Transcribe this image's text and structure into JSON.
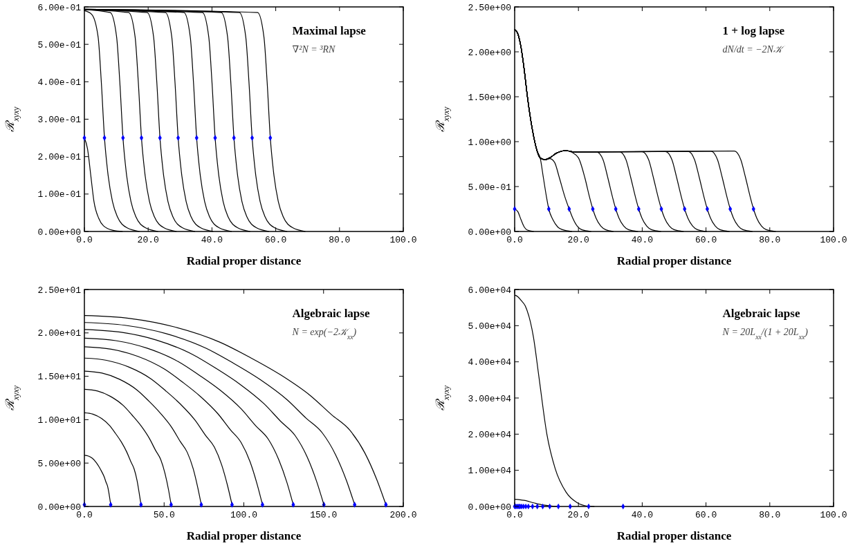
{
  "chart_data": [
    {
      "type": "line",
      "title": "Maximal lapse",
      "subtitle": "∇²N = ³RN",
      "xlabel": "Radial proper distance",
      "ylabel": "ℛ$_{xyxy}$",
      "xlim": [
        0,
        100
      ],
      "ylim": [
        0,
        0.6
      ],
      "xticks": [
        {
          "value": 0,
          "label": "0.0"
        },
        {
          "value": 20,
          "label": "20.0"
        },
        {
          "value": 40,
          "label": "40.0"
        },
        {
          "value": 60,
          "label": "60.0"
        },
        {
          "value": 80,
          "label": "80.0"
        },
        {
          "value": 100,
          "label": "100.0"
        }
      ],
      "yticks": [
        {
          "value": 0,
          "label": "0.00e+00"
        },
        {
          "value": 0.1,
          "label": "1.00e-01"
        },
        {
          "value": 0.2,
          "label": "2.00e-01"
        },
        {
          "value": 0.3,
          "label": "3.00e-01"
        },
        {
          "value": 0.4,
          "label": "4.00e-01"
        },
        {
          "value": 0.5,
          "label": "5.00e-01"
        },
        {
          "value": 0.6,
          "label": "6.00e-01"
        }
      ],
      "series": [
        {
          "type": "line",
          "color": "#000000",
          "x": [
            0,
            1,
            2,
            3,
            4.5,
            6,
            9,
            12
          ],
          "values": [
            0.25,
            0.22,
            0.15,
            0.08,
            0.035,
            0.015,
            0.003,
            0
          ]
        },
        {
          "type": "line",
          "color": "#000000",
          "x": [
            0,
            2.3,
            4.3,
            5.3,
            6.3,
            7.3,
            8.8,
            10.3,
            13.3,
            17.3
          ],
          "values": [
            0.59,
            0.58,
            0.52,
            0.4,
            0.25,
            0.16,
            0.08,
            0.04,
            0.01,
            0
          ]
        },
        {
          "type": "line",
          "color": "#000000",
          "x": [
            0,
            8.1,
            10.1,
            11.1,
            12.1,
            13.1,
            14.6,
            16.1,
            19.1,
            23.1
          ],
          "values": [
            0.593,
            0.585,
            0.52,
            0.4,
            0.25,
            0.16,
            0.08,
            0.04,
            0.01,
            0
          ]
        },
        {
          "type": "line",
          "color": "#000000",
          "x": [
            0,
            13.9,
            15.9,
            16.9,
            17.9,
            18.9,
            20.4,
            21.9,
            24.9,
            28.9
          ],
          "values": [
            0.593,
            0.585,
            0.52,
            0.4,
            0.25,
            0.16,
            0.08,
            0.04,
            0.01,
            0
          ]
        },
        {
          "type": "line",
          "color": "#000000",
          "x": [
            0,
            19.7,
            21.7,
            22.7,
            23.7,
            24.7,
            26.2,
            27.7,
            30.7,
            34.7
          ],
          "values": [
            0.593,
            0.585,
            0.52,
            0.4,
            0.25,
            0.16,
            0.08,
            0.04,
            0.01,
            0
          ]
        },
        {
          "type": "line",
          "color": "#000000",
          "x": [
            0,
            25.4,
            27.4,
            28.4,
            29.4,
            30.4,
            31.9,
            33.4,
            36.4,
            40.4
          ],
          "values": [
            0.593,
            0.585,
            0.52,
            0.4,
            0.25,
            0.16,
            0.08,
            0.04,
            0.01,
            0
          ]
        },
        {
          "type": "line",
          "color": "#000000",
          "x": [
            0,
            31.2,
            33.2,
            34.2,
            35.2,
            36.2,
            37.7,
            39.2,
            42.2,
            46.2
          ],
          "values": [
            0.593,
            0.585,
            0.52,
            0.4,
            0.25,
            0.16,
            0.08,
            0.04,
            0.01,
            0
          ]
        },
        {
          "type": "line",
          "color": "#000000",
          "x": [
            0,
            37,
            39,
            40,
            41,
            42,
            43.5,
            45,
            48,
            52
          ],
          "values": [
            0.593,
            0.585,
            0.52,
            0.4,
            0.25,
            0.16,
            0.08,
            0.04,
            0.01,
            0
          ]
        },
        {
          "type": "line",
          "color": "#000000",
          "x": [
            0,
            42.9,
            44.9,
            45.9,
            46.9,
            47.9,
            49.4,
            50.9,
            53.9,
            57.9
          ],
          "values": [
            0.594,
            0.585,
            0.52,
            0.4,
            0.25,
            0.16,
            0.08,
            0.04,
            0.01,
            0
          ]
        },
        {
          "type": "line",
          "color": "#000000",
          "x": [
            0,
            48.6,
            50.6,
            51.6,
            52.6,
            53.6,
            55.1,
            56.6,
            59.6,
            63.6
          ],
          "values": [
            0.594,
            0.585,
            0.52,
            0.4,
            0.25,
            0.16,
            0.08,
            0.04,
            0.01,
            0
          ]
        },
        {
          "type": "line",
          "color": "#000000",
          "x": [
            0,
            54.3,
            56.3,
            57.3,
            58.3,
            59.3,
            60.8,
            62.3,
            65.3,
            69.3
          ],
          "values": [
            0.594,
            0.585,
            0.52,
            0.4,
            0.25,
            0.16,
            0.08,
            0.04,
            0.01,
            0
          ]
        },
        {
          "type": "scatter",
          "color": "#0000ff",
          "marker": "diamond",
          "x": [
            0,
            6.3,
            12.1,
            17.9,
            23.7,
            29.4,
            35.2,
            41,
            46.9,
            52.6,
            58.3
          ],
          "values": [
            0.25,
            0.25,
            0.25,
            0.25,
            0.25,
            0.25,
            0.25,
            0.25,
            0.25,
            0.25,
            0.25
          ]
        }
      ]
    },
    {
      "type": "line",
      "title": "1 + log lapse",
      "subtitle": "dN/dt = −2N𝒦",
      "xlabel": "Radial proper distance",
      "ylabel": "ℛ$_{xyxy}$",
      "xlim": [
        0,
        100
      ],
      "ylim": [
        0,
        2.5
      ],
      "xticks": [
        {
          "value": 0,
          "label": "0.0"
        },
        {
          "value": 20,
          "label": "20.0"
        },
        {
          "value": 40,
          "label": "40.0"
        },
        {
          "value": 60,
          "label": "60.0"
        },
        {
          "value": 80,
          "label": "80.0"
        },
        {
          "value": 100,
          "label": "100.0"
        }
      ],
      "yticks": [
        {
          "value": 0,
          "label": "0.00e+00"
        },
        {
          "value": 0.5,
          "label": "5.00e-01"
        },
        {
          "value": 1,
          "label": "1.00e+00"
        },
        {
          "value": 1.5,
          "label": "1.50e+00"
        },
        {
          "value": 2,
          "label": "2.00e+00"
        },
        {
          "value": 2.5,
          "label": "2.50e+00"
        }
      ],
      "series": [
        {
          "type": "line",
          "color": "#000000",
          "x": [
            0,
            1,
            2,
            3,
            4,
            6
          ],
          "values": [
            0.25,
            0.22,
            0.13,
            0.05,
            0.015,
            0
          ]
        },
        {
          "type": "line",
          "color": "#000000",
          "x": [
            0,
            1,
            2,
            3,
            4,
            5,
            6,
            7,
            8,
            9,
            10,
            10.7,
            12,
            13.5,
            15,
            18
          ],
          "values": [
            2.25,
            2.2,
            2.05,
            1.8,
            1.5,
            1.25,
            1.05,
            0.9,
            0.82,
            0.6,
            0.38,
            0.25,
            0.13,
            0.05,
            0.02,
            0
          ]
        },
        {
          "type": "line",
          "color": "#000000",
          "x": [
            0,
            1,
            2,
            3,
            4,
            5,
            6,
            7,
            8,
            9.5,
            11,
            12.5,
            14,
            15.8,
            17.1,
            18.2,
            19.6,
            21,
            24
          ],
          "values": [
            2.25,
            2.2,
            2.05,
            1.8,
            1.5,
            1.25,
            1.05,
            0.9,
            0.82,
            0.8,
            0.81,
            0.77,
            0.6,
            0.38,
            0.25,
            0.15,
            0.06,
            0.02,
            0
          ]
        },
        {
          "type": "line",
          "color": "#000000",
          "x": [
            0,
            1,
            2,
            3,
            4,
            5,
            6,
            7,
            8,
            9.5,
            11,
            13,
            16,
            18,
            20,
            22,
            23.5,
            24.5,
            25.5,
            27,
            28.5,
            31
          ],
          "values": [
            2.25,
            2.2,
            2.05,
            1.8,
            1.5,
            1.25,
            1.05,
            0.9,
            0.82,
            0.8,
            0.82,
            0.87,
            0.9,
            0.88,
            0.82,
            0.6,
            0.38,
            0.25,
            0.15,
            0.06,
            0.02,
            0
          ]
        },
        {
          "type": "line",
          "color": "#000000",
          "x": [
            0,
            1,
            2,
            3,
            4,
            5,
            6,
            7,
            8,
            9.5,
            11,
            13,
            16,
            19,
            25.7,
            27.7,
            29.2,
            30.7,
            31.7,
            32.7,
            34.2,
            35.7,
            38.7
          ],
          "values": [
            2.25,
            2.2,
            2.05,
            1.8,
            1.5,
            1.25,
            1.05,
            0.9,
            0.82,
            0.8,
            0.82,
            0.87,
            0.9,
            0.885,
            0.885,
            0.8,
            0.6,
            0.38,
            0.25,
            0.15,
            0.06,
            0.02,
            0
          ]
        },
        {
          "type": "line",
          "color": "#000000",
          "x": [
            0,
            1,
            2,
            3,
            4,
            5,
            6,
            7,
            8,
            9.5,
            11,
            13,
            16,
            19,
            32.9,
            34.9,
            36.4,
            37.9,
            38.9,
            39.9,
            41.4,
            42.9,
            45.9
          ],
          "values": [
            2.25,
            2.2,
            2.05,
            1.8,
            1.5,
            1.25,
            1.05,
            0.9,
            0.82,
            0.8,
            0.82,
            0.87,
            0.9,
            0.885,
            0.887,
            0.8,
            0.6,
            0.38,
            0.25,
            0.15,
            0.06,
            0.02,
            0
          ]
        },
        {
          "type": "line",
          "color": "#000000",
          "x": [
            0,
            1,
            2,
            3,
            4,
            5,
            6,
            7,
            8,
            9.5,
            11,
            13,
            16,
            19,
            40,
            42,
            43.5,
            45,
            46,
            47,
            48.5,
            50,
            53
          ],
          "values": [
            2.25,
            2.2,
            2.05,
            1.8,
            1.5,
            1.25,
            1.05,
            0.9,
            0.82,
            0.8,
            0.82,
            0.87,
            0.9,
            0.885,
            0.888,
            0.8,
            0.6,
            0.38,
            0.25,
            0.15,
            0.06,
            0.02,
            0
          ]
        },
        {
          "type": "line",
          "color": "#000000",
          "x": [
            0,
            1,
            2,
            3,
            4,
            5,
            6,
            7,
            8,
            9.5,
            11,
            13,
            16,
            19,
            47.3,
            49.3,
            50.8,
            52.3,
            53.3,
            54.3,
            55.8,
            57.3,
            60.3
          ],
          "values": [
            2.25,
            2.2,
            2.05,
            1.8,
            1.5,
            1.25,
            1.05,
            0.9,
            0.82,
            0.8,
            0.82,
            0.87,
            0.9,
            0.885,
            0.89,
            0.8,
            0.6,
            0.38,
            0.25,
            0.15,
            0.06,
            0.02,
            0
          ]
        },
        {
          "type": "line",
          "color": "#000000",
          "x": [
            0,
            1,
            2,
            3,
            4,
            5,
            6,
            7,
            8,
            9.5,
            11,
            13,
            16,
            19,
            54.4,
            56.4,
            57.9,
            59.4,
            60.4,
            61.4,
            62.9,
            64.4,
            67.4
          ],
          "values": [
            2.25,
            2.2,
            2.05,
            1.8,
            1.5,
            1.25,
            1.05,
            0.9,
            0.82,
            0.8,
            0.82,
            0.87,
            0.9,
            0.885,
            0.892,
            0.8,
            0.6,
            0.38,
            0.25,
            0.15,
            0.06,
            0.02,
            0
          ]
        },
        {
          "type": "line",
          "color": "#000000",
          "x": [
            0,
            1,
            2,
            3,
            4,
            5,
            6,
            7,
            8,
            9.5,
            11,
            13,
            16,
            19,
            61.6,
            63.6,
            65.1,
            66.6,
            67.6,
            68.6,
            70.1,
            71.6,
            74.6
          ],
          "values": [
            2.25,
            2.2,
            2.05,
            1.8,
            1.5,
            1.25,
            1.05,
            0.9,
            0.82,
            0.8,
            0.82,
            0.87,
            0.9,
            0.885,
            0.894,
            0.8,
            0.6,
            0.38,
            0.25,
            0.15,
            0.06,
            0.02,
            0
          ]
        },
        {
          "type": "line",
          "color": "#000000",
          "x": [
            0,
            1,
            2,
            3,
            4,
            5,
            6,
            7,
            8,
            9.5,
            11,
            13,
            16,
            19,
            68.9,
            70.9,
            72.4,
            73.9,
            74.9,
            75.9,
            77.4,
            78.9,
            81.9
          ],
          "values": [
            2.25,
            2.2,
            2.05,
            1.8,
            1.5,
            1.25,
            1.05,
            0.9,
            0.82,
            0.8,
            0.82,
            0.87,
            0.9,
            0.885,
            0.895,
            0.8,
            0.6,
            0.38,
            0.25,
            0.15,
            0.06,
            0.02,
            0
          ]
        },
        {
          "type": "scatter",
          "color": "#0000ff",
          "marker": "diamond",
          "x": [
            0,
            10.7,
            17.1,
            24.5,
            31.7,
            38.9,
            46,
            53.3,
            60.4,
            67.6,
            74.9
          ],
          "values": [
            0.25,
            0.25,
            0.25,
            0.25,
            0.25,
            0.25,
            0.25,
            0.25,
            0.25,
            0.25,
            0.25
          ]
        }
      ]
    },
    {
      "type": "line",
      "title": "Algebraic lapse",
      "subtitle": "N = exp(−2𝒦$_{xx}$)",
      "xlabel": "Radial proper distance",
      "ylabel": "ℛ$_{xyxy}$",
      "xlim": [
        0,
        200
      ],
      "ylim": [
        0,
        25
      ],
      "xticks": [
        {
          "value": 0,
          "label": "0.0"
        },
        {
          "value": 50,
          "label": "50.0"
        },
        {
          "value": 100,
          "label": "100.0"
        },
        {
          "value": 150,
          "label": "150.0"
        },
        {
          "value": 200,
          "label": "200.0"
        }
      ],
      "yticks": [
        {
          "value": 0,
          "label": "0.00e+00"
        },
        {
          "value": 5,
          "label": "5.00e+00"
        },
        {
          "value": 10,
          "label": "1.00e+01"
        },
        {
          "value": 15,
          "label": "1.50e+01"
        },
        {
          "value": 20,
          "label": "2.00e+01"
        },
        {
          "value": 25,
          "label": "2.50e+01"
        }
      ],
      "series": [
        {
          "type": "line",
          "color": "#000000",
          "x": [
            0,
            2.5,
            5,
            7.4,
            9.1,
            10.7,
            12.4,
            13.5,
            14.5,
            15.3,
            16,
            16.5
          ],
          "values": [
            5.9,
            5.81,
            5.55,
            5.07,
            4.6,
            4.07,
            3.42,
            2.83,
            2.36,
            1.65,
            0.83,
            0.2
          ]
        },
        {
          "type": "line",
          "color": "#000000",
          "x": [
            0,
            5.3,
            10.7,
            16,
            19.5,
            23.1,
            26.6,
            29.1,
            31.2,
            33,
            34.4,
            35.5
          ],
          "values": [
            10.8,
            10.64,
            10.15,
            9.29,
            8.42,
            7.45,
            6.26,
            5.18,
            4.32,
            3.02,
            1.51,
            0.2
          ]
        },
        {
          "type": "line",
          "color": "#000000",
          "x": [
            0,
            8.2,
            16.3,
            24.5,
            29.9,
            35.4,
            40.8,
            44.6,
            47.9,
            50.6,
            52.8,
            54.4
          ],
          "values": [
            13.5,
            13.3,
            12.69,
            11.61,
            10.53,
            9.32,
            7.83,
            6.48,
            5.4,
            3.78,
            1.89,
            0.2
          ]
        },
        {
          "type": "line",
          "color": "#000000",
          "x": [
            0,
            11,
            22,
            33,
            40.3,
            47.6,
            55,
            60.1,
            64.5,
            68.2,
            71.1,
            73.3
          ],
          "values": [
            15.6,
            15.37,
            14.66,
            13.42,
            12.17,
            10.76,
            9.05,
            7.49,
            6.24,
            4.37,
            2.18,
            0.2
          ]
        },
        {
          "type": "line",
          "color": "#000000",
          "x": [
            0,
            13.9,
            27.8,
            41.7,
            50.9,
            60.2,
            69.5,
            75.9,
            81.5,
            86.1,
            89.8,
            92.6
          ],
          "values": [
            17.1,
            16.84,
            16.07,
            14.71,
            13.34,
            11.8,
            9.92,
            8.21,
            6.84,
            4.79,
            2.39,
            0.2
          ]
        },
        {
          "type": "line",
          "color": "#000000",
          "x": [
            0,
            16.8,
            33.5,
            50.3,
            61.4,
            72.6,
            83.8,
            91.6,
            98.3,
            103.9,
            108.3,
            111.7
          ],
          "values": [
            18.4,
            18.12,
            17.3,
            15.82,
            14.35,
            12.7,
            10.67,
            8.83,
            7.36,
            5.15,
            2.58,
            0.2
          ]
        },
        {
          "type": "line",
          "color": "#000000",
          "x": [
            0,
            19.7,
            39.3,
            59,
            72,
            85.2,
            98.3,
            107.4,
            115.3,
            121.8,
            127.1,
            131
          ],
          "values": [
            19.4,
            19.11,
            18.24,
            16.68,
            15.13,
            13.39,
            11.25,
            9.31,
            7.76,
            5.43,
            2.72,
            0.2
          ]
        },
        {
          "type": "line",
          "color": "#000000",
          "x": [
            0,
            22.5,
            45.1,
            67.6,
            82.6,
            97.6,
            112.7,
            123.2,
            132.2,
            139.7,
            145.7,
            150.2
          ],
          "values": [
            20.4,
            20.09,
            19.18,
            17.54,
            15.91,
            14.08,
            11.83,
            9.79,
            8.16,
            5.71,
            2.86,
            0.2
          ]
        },
        {
          "type": "line",
          "color": "#000000",
          "x": [
            0,
            25.4,
            50.9,
            76.3,
            93.2,
            110.2,
            127.1,
            139,
            149.2,
            157.6,
            164.4,
            169.5
          ],
          "values": [
            21.2,
            20.88,
            19.93,
            18.23,
            16.54,
            14.63,
            12.3,
            10.18,
            8.48,
            5.94,
            2.97,
            0.2
          ]
        },
        {
          "type": "line",
          "color": "#000000",
          "x": [
            0,
            28.4,
            56.7,
            85.1,
            104,
            122.9,
            141.8,
            155.1,
            166.4,
            175.9,
            183.4,
            189.1
          ],
          "values": [
            22,
            21.67,
            20.68,
            18.92,
            17.16,
            15.18,
            12.76,
            10.56,
            8.8,
            6.16,
            3.08,
            0.2
          ]
        },
        {
          "type": "scatter",
          "color": "#0000ff",
          "marker": "diamond",
          "x": [
            0,
            16.5,
            35.5,
            54.4,
            73.3,
            92.6,
            111.7,
            131,
            150.2,
            169.5,
            189.1
          ],
          "values": [
            0.2,
            0.2,
            0.2,
            0.2,
            0.2,
            0.2,
            0.2,
            0.2,
            0.2,
            0.2,
            0.2
          ]
        }
      ]
    },
    {
      "type": "line",
      "title": "Algebraic lapse",
      "subtitle": "N = 20L$_{xx}$/(1 + 20L$_{xx}$)",
      "xlabel": "Radial proper distance",
      "ylabel": "ℛ$_{xyxy}$",
      "xlim": [
        0,
        100
      ],
      "ylim": [
        0,
        60000
      ],
      "xticks": [
        {
          "value": 0,
          "label": "0.0"
        },
        {
          "value": 20,
          "label": "20.0"
        },
        {
          "value": 40,
          "label": "40.0"
        },
        {
          "value": 60,
          "label": "60.0"
        },
        {
          "value": 80,
          "label": "80.0"
        },
        {
          "value": 100,
          "label": "100.0"
        }
      ],
      "yticks": [
        {
          "value": 0,
          "label": "0.00e+00"
        },
        {
          "value": 10000,
          "label": "1.00e+04"
        },
        {
          "value": 20000,
          "label": "2.00e+04"
        },
        {
          "value": 30000,
          "label": "3.00e+04"
        },
        {
          "value": 40000,
          "label": "4.00e+04"
        },
        {
          "value": 50000,
          "label": "5.00e+04"
        },
        {
          "value": 60000,
          "label": "6.00e+04"
        }
      ],
      "series": [
        {
          "type": "line",
          "color": "#000000",
          "x": [
            0,
            1,
            2,
            3.3,
            5.9,
            7.6,
            10.1,
            12.7,
            16.1,
            19.5,
            22.9,
            25
          ],
          "values": [
            58500,
            58000,
            57000,
            55500,
            46800,
            35900,
            20000,
            10500,
            4000,
            1100,
            100,
            0
          ]
        },
        {
          "type": "line",
          "color": "#000000",
          "x": [
            0,
            3,
            6,
            9,
            12,
            14
          ],
          "values": [
            2000,
            1700,
            1000,
            400,
            100,
            0
          ]
        },
        {
          "type": "scatter",
          "color": "#0000ff",
          "marker": "diamond",
          "x": [
            0,
            0.4,
            0.85,
            1.3,
            1.7,
            2.2,
            2.8,
            3.5,
            4.3,
            5.6,
            7.1,
            8.8,
            11,
            13.7,
            17.4,
            23.2,
            34
          ],
          "values": [
            0,
            0,
            0,
            0,
            0,
            0,
            0,
            0,
            0,
            0,
            0,
            0,
            0,
            0,
            0,
            0,
            0
          ]
        }
      ]
    }
  ]
}
